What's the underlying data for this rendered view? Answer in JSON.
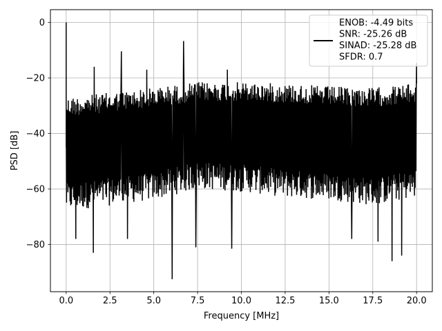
{
  "chart_data": {
    "type": "line",
    "title": "",
    "xlabel": "Frequency [MHz]",
    "ylabel": "PSD [dB]",
    "xlim": [
      -0.9,
      20.9
    ],
    "ylim": [
      -97,
      4.6
    ],
    "xticks": [
      0.0,
      2.5,
      5.0,
      7.5,
      10.0,
      12.5,
      15.0,
      17.5,
      20.0
    ],
    "xtick_labels": [
      "0.0",
      "2.5",
      "5.0",
      "7.5",
      "10.0",
      "12.5",
      "15.0",
      "17.5",
      "20.0"
    ],
    "yticks": [
      0,
      -20,
      -40,
      -60,
      -80
    ],
    "ytick_labels": [
      "0",
      "−20",
      "−40",
      "−60",
      "−80"
    ],
    "grid": true,
    "legend_position": "top-right",
    "legend_entries": [
      "ENOB: -4.49 bits",
      "SNR: -25.26 dB",
      "SINAD: -25.28 dB",
      "SFDR: 0.7"
    ],
    "series": [
      {
        "color": "#000000",
        "sample_count": 1000,
        "peak": {
          "x": 0.0,
          "y": 0.0
        },
        "spurs": [
          {
            "x": 1.6,
            "y": -16.0
          },
          {
            "x": 3.15,
            "y": -10.4
          },
          {
            "x": 4.6,
            "y": -17.0
          },
          {
            "x": 6.7,
            "y": -6.7
          },
          {
            "x": 9.2,
            "y": -17.0
          },
          {
            "x": 20.0,
            "y": -14.6
          }
        ],
        "upper_envelope": [
          [
            0.0,
            -27.0
          ],
          [
            5.0,
            -23.5
          ],
          [
            7.5,
            -21.5
          ],
          [
            10.0,
            -21.5
          ],
          [
            12.5,
            -22.0
          ],
          [
            15.0,
            -23.0
          ],
          [
            17.5,
            -23.5
          ],
          [
            20.0,
            -22.0
          ]
        ],
        "lower_envelope": [
          [
            0.0,
            -68.0
          ],
          [
            5.0,
            -64.0
          ],
          [
            7.5,
            -60.0
          ],
          [
            10.0,
            -61.0
          ],
          [
            12.5,
            -63.0
          ],
          [
            15.0,
            -64.0
          ],
          [
            17.5,
            -66.0
          ],
          [
            20.0,
            -63.0
          ]
        ],
        "deep_dips": [
          {
            "x": 6.05,
            "y": -92.5
          },
          {
            "x": 18.6,
            "y": -86.0
          },
          {
            "x": 1.55,
            "y": -83.0
          },
          {
            "x": 7.4,
            "y": -81.0
          },
          {
            "x": 9.45,
            "y": -81.5
          },
          {
            "x": 19.15,
            "y": -84.0
          },
          {
            "x": 0.55,
            "y": -78.0
          },
          {
            "x": 3.5,
            "y": -78.0
          },
          {
            "x": 16.3,
            "y": -78.0
          },
          {
            "x": 17.8,
            "y": -79.0
          }
        ]
      }
    ]
  }
}
